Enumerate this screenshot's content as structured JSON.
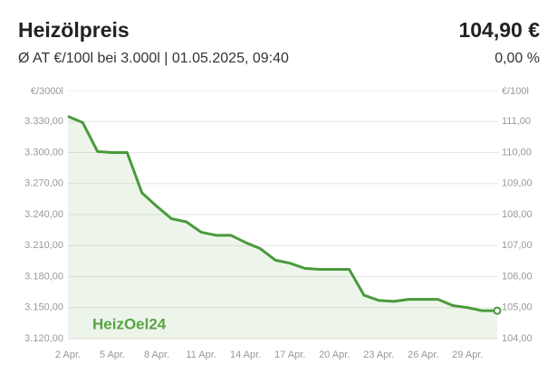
{
  "chart_data": {
    "type": "line",
    "title": "Heizölpreis",
    "price": "104,90 €",
    "subtitle": "Ø AT €/100l bei 3.000l | 01.05.2025, 09:40",
    "change": "0,00 %",
    "watermark": "HeizOel24",
    "ylabel": "€/3000l",
    "y2label": "€/100l",
    "categories": [
      "2 Apr.",
      null,
      null,
      "5 Apr.",
      null,
      null,
      "8 Apr.",
      null,
      null,
      "11 Apr.",
      null,
      null,
      "14 Apr.",
      null,
      null,
      "17 Apr.",
      null,
      null,
      "20 Apr.",
      null,
      null,
      "23 Apr.",
      null,
      null,
      "26 Apr.",
      null,
      null,
      "29 Apr.",
      null,
      null
    ],
    "series": [
      {
        "color": "#4a9a3c",
        "values": [
          3335,
          3329,
          3301,
          3300,
          3300,
          3261,
          3248,
          3236,
          3233,
          3223,
          3220,
          3220,
          3213,
          3207,
          3196,
          3193,
          3188,
          3187,
          3187,
          3187,
          3162,
          3157,
          3156,
          3158,
          3158,
          3158,
          3152,
          3150,
          3147,
          3147
        ]
      }
    ],
    "ylim": [
      3120,
      3360
    ],
    "yticks": [
      {
        "value": 3120,
        "label": "3.120,00"
      },
      {
        "value": 3150,
        "label": "3.150,00"
      },
      {
        "value": 3180,
        "label": "3.180,00"
      },
      {
        "value": 3210,
        "label": "3.210,00"
      },
      {
        "value": 3240,
        "label": "3.240,00"
      },
      {
        "value": 3270,
        "label": "3.270,00"
      },
      {
        "value": 3300,
        "label": "3.300,00"
      },
      {
        "value": 3330,
        "label": "3.330,00"
      }
    ],
    "y2lim": [
      104,
      112
    ],
    "y2ticks": [
      {
        "value": 104,
        "label": "104,00"
      },
      {
        "value": 105,
        "label": "105,00"
      },
      {
        "value": 106,
        "label": "106,00"
      },
      {
        "value": 107,
        "label": "107,00"
      },
      {
        "value": 108,
        "label": "108,00"
      },
      {
        "value": 109,
        "label": "109,00"
      },
      {
        "value": 110,
        "label": "110,00"
      },
      {
        "value": 111,
        "label": "111,00"
      }
    ],
    "grid": true
  }
}
